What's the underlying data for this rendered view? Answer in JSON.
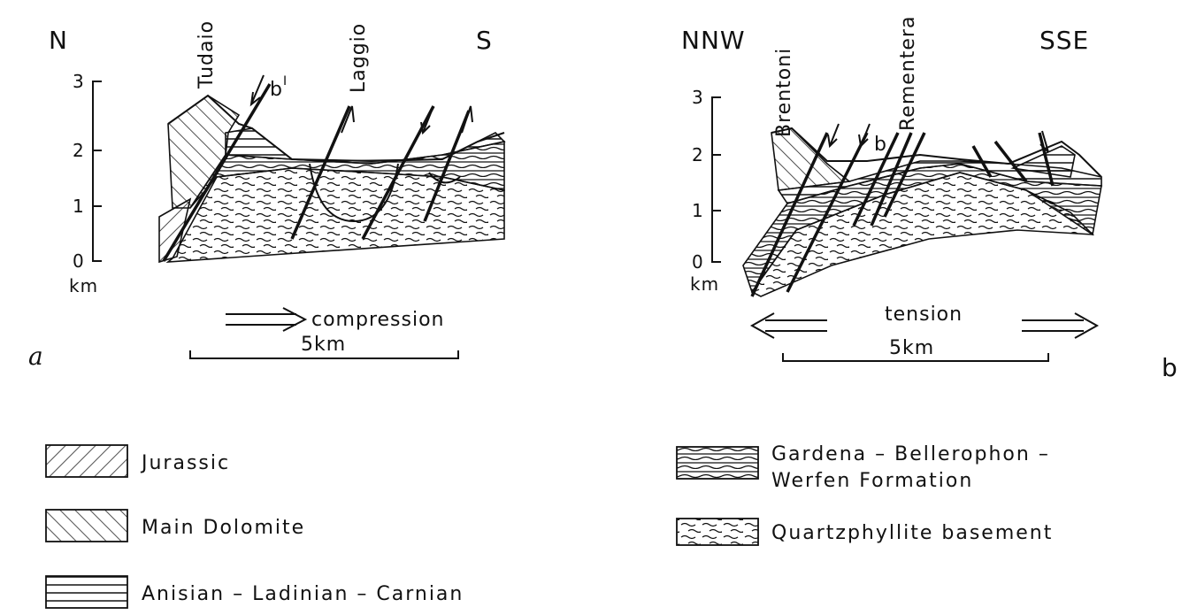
{
  "panel_a": {
    "north": "N",
    "south": "S",
    "places": [
      "Tudaio",
      "Laggio"
    ],
    "fault": "b",
    "fault_sup": "I",
    "axis": {
      "ticks": [
        "0",
        "1",
        "2",
        "3"
      ],
      "unit": "km"
    },
    "arrow_label": "compression",
    "scale": "5km",
    "letter": "a"
  },
  "panel_b": {
    "north": "NNW",
    "south": "SSE",
    "places": [
      "Brentoni",
      "Rementera"
    ],
    "fault": "b",
    "axis": {
      "ticks": [
        "0",
        "1",
        "2",
        "3"
      ],
      "unit": "km"
    },
    "arrow_label": "tension",
    "scale": "5km",
    "letter": "b"
  },
  "legend": [
    {
      "lines": [
        "Jurassic"
      ]
    },
    {
      "lines": [
        "Main Dolomite"
      ]
    },
    {
      "lines": [
        "Anisian – Ladinian – Carnian"
      ]
    },
    {
      "lines": [
        "Gardena – Bellerophon –",
        "Werfen Formation"
      ]
    },
    {
      "lines": [
        "Quartzphyllite basement"
      ]
    }
  ]
}
